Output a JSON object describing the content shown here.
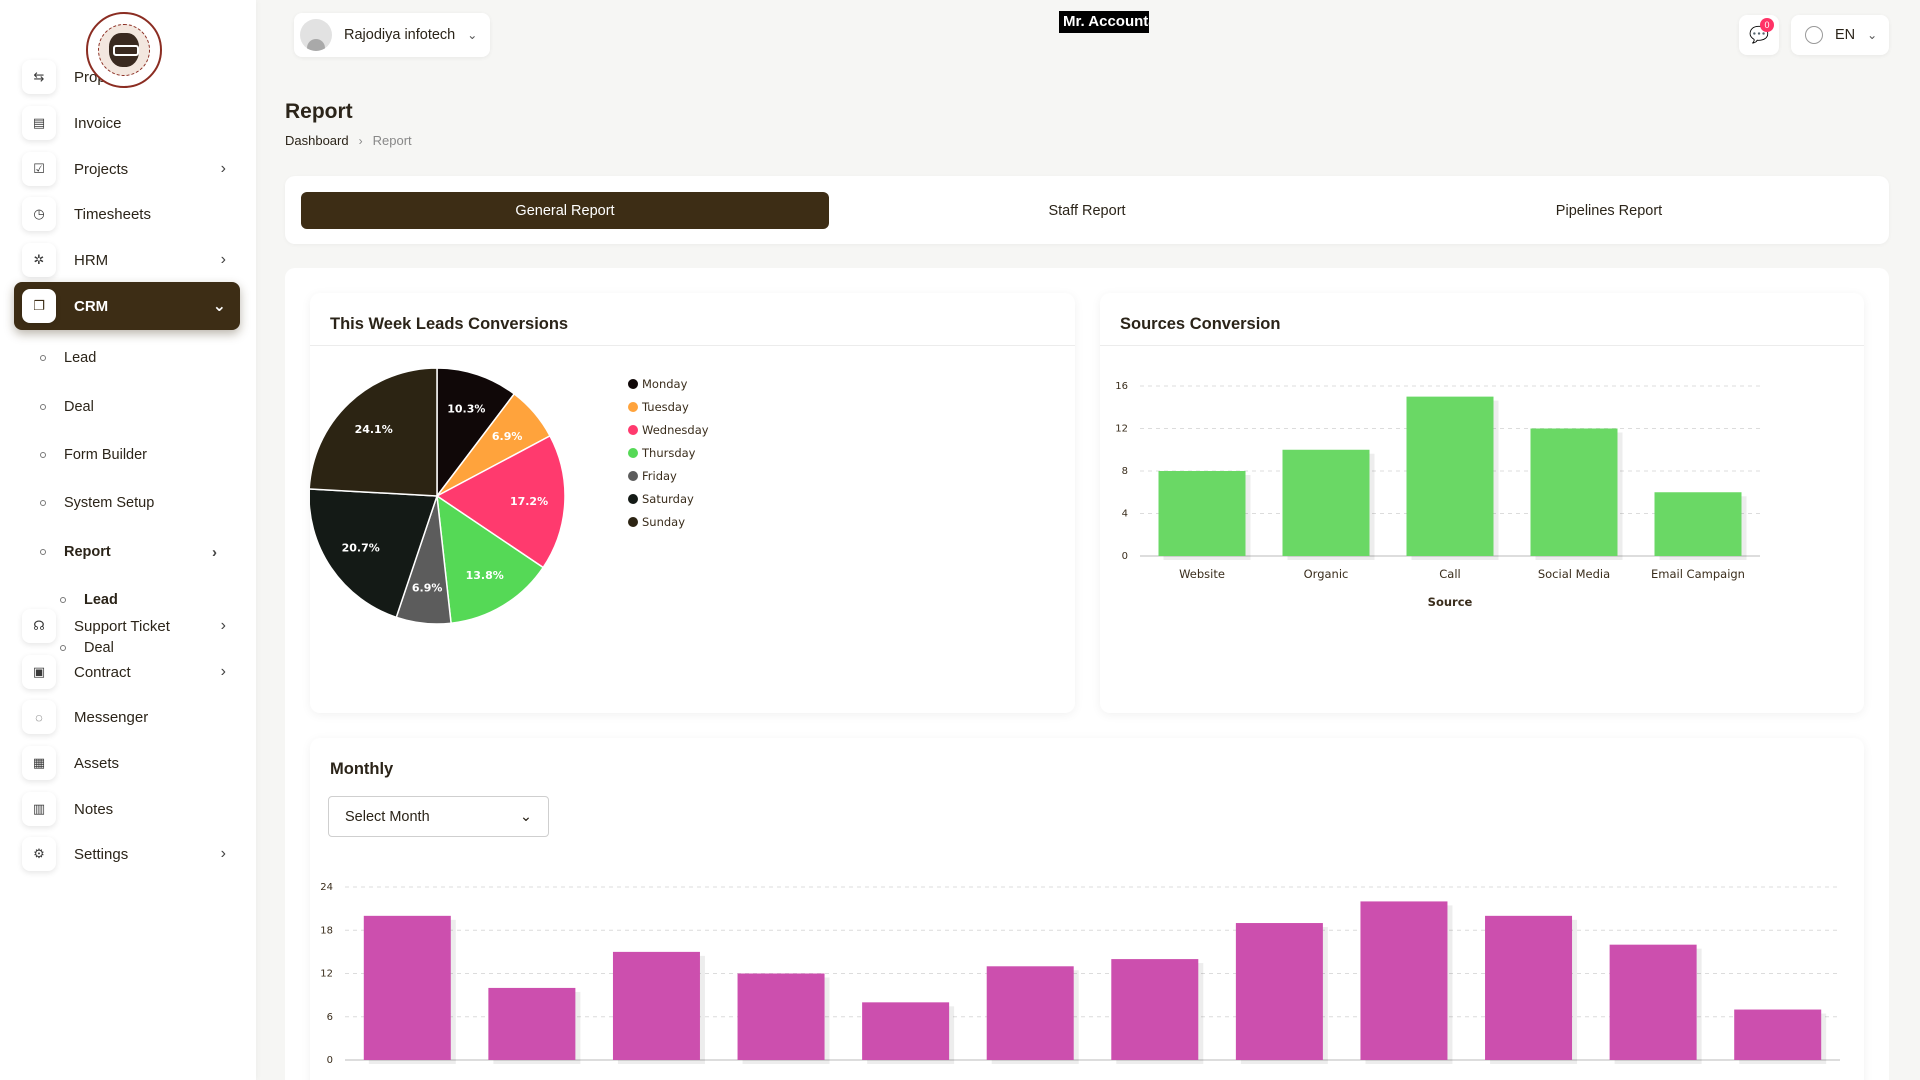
{
  "sidebar": {
    "items": [
      {
        "label": "Proposal",
        "icon": "proposal-icon",
        "glyph": "⇆",
        "chevron": false
      },
      {
        "label": "Invoice",
        "icon": "invoice-icon",
        "glyph": "▤",
        "chevron": false
      },
      {
        "label": "Projects",
        "icon": "projects-icon",
        "glyph": "☑",
        "chevron": true
      },
      {
        "label": "Timesheets",
        "icon": "clock-icon",
        "glyph": "◷",
        "chevron": false
      },
      {
        "label": "HRM",
        "icon": "hrm-icon",
        "glyph": "✲",
        "chevron": true
      },
      {
        "label": "CRM",
        "icon": "crm-icon",
        "glyph": "❐",
        "chevron": true,
        "active": true
      },
      {
        "label": "Support Ticket",
        "icon": "headset-icon",
        "glyph": "☊",
        "chevron": true
      },
      {
        "label": "Contract",
        "icon": "contract-icon",
        "glyph": "▣",
        "chevron": true
      },
      {
        "label": "Messenger",
        "icon": "chat-icon",
        "glyph": "◌",
        "chevron": false
      },
      {
        "label": "Assets",
        "icon": "assets-icon",
        "glyph": "▦",
        "chevron": false
      },
      {
        "label": "Notes",
        "icon": "notes-icon",
        "glyph": "▥",
        "chevron": false
      },
      {
        "label": "Settings",
        "icon": "gear-icon",
        "glyph": "⚙",
        "chevron": true
      }
    ],
    "crm_sub": [
      "Lead",
      "Deal",
      "Form Builder",
      "System Setup",
      "Report"
    ],
    "report_sub": [
      "Lead",
      "Deal"
    ]
  },
  "header": {
    "company": "Rajodiya infotech",
    "app_title": "Mr. Accountant",
    "message_count": "0",
    "language": "EN"
  },
  "page": {
    "title": "Report",
    "breadcrumb": {
      "home": "Dashboard",
      "current": "Report"
    }
  },
  "tabs": [
    "General Report",
    "Staff Report",
    "Pipelines Report"
  ],
  "colors": {
    "brand": "#3d2d15",
    "bar_green": "#6ad865",
    "bar_magenta": "#cc4fae"
  },
  "cards": {
    "leads_title": "This Week Leads Conversions",
    "sources_title": "Sources Conversion",
    "monthly_title": "Monthly",
    "select_month": "Select Month"
  },
  "chart_data": [
    {
      "type": "pie",
      "title": "This Week Leads Conversions",
      "categories": [
        "Monday",
        "Tuesday",
        "Wednesday",
        "Thursday",
        "Friday",
        "Saturday",
        "Sunday"
      ],
      "values": [
        10.3,
        6.9,
        17.2,
        13.8,
        6.9,
        20.7,
        24.1
      ],
      "labels": [
        "10.3%",
        "6.9%",
        "17.2%",
        "13.8%",
        "6.9%",
        "20.7%",
        "24.1%"
      ],
      "colors": [
        "#100808",
        "#ffa33c",
        "#ff3a6e",
        "#55d956",
        "#5c5c5c",
        "#141a16",
        "#2c2413"
      ],
      "legend": "right"
    },
    {
      "type": "bar",
      "title": "Sources Conversion",
      "categories": [
        "Website",
        "Organic",
        "Call",
        "Social Media",
        "Email Campaign"
      ],
      "values": [
        8,
        10,
        15,
        12,
        6
      ],
      "xlabel": "Source",
      "ylabel": "",
      "yticks": [
        "0",
        "4",
        "8",
        "12",
        "16"
      ],
      "ylim": [
        0,
        16
      ],
      "grid": true
    },
    {
      "type": "bar",
      "title": "Monthly",
      "categories": [
        "",
        "",
        "",
        "",
        "",
        "",
        "",
        "",
        "",
        "",
        "",
        ""
      ],
      "values": [
        20,
        10,
        15,
        12,
        8,
        13,
        14,
        19,
        22,
        20,
        16,
        7
      ],
      "yticks": [
        "0",
        "6",
        "12",
        "18",
        "24"
      ],
      "ylim": [
        0,
        24
      ],
      "grid": true
    }
  ]
}
